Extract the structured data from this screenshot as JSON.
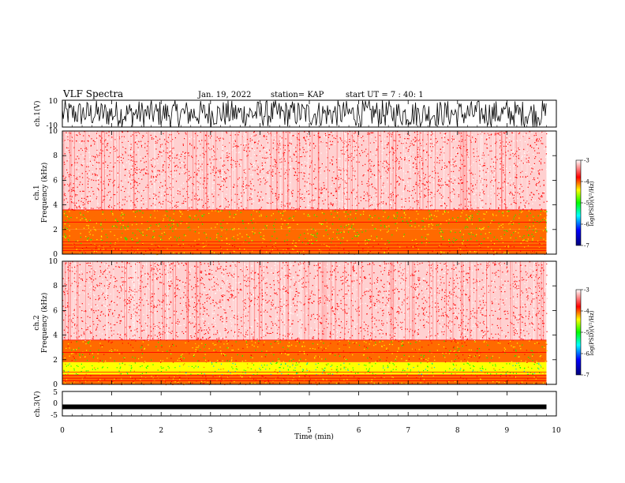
{
  "header": {
    "title": "VLF Spectra",
    "date": "Jan. 19, 2022",
    "station": "station= KAP",
    "start_ut": "start UT =  7 : 40: 1"
  },
  "chart_data": [
    {
      "type": "line",
      "panel": "ch1-waveform",
      "ylabel": "ch.1(V)",
      "ylim": [
        -10,
        10
      ],
      "yticks": [
        "10",
        "-10"
      ],
      "xlim": [
        0,
        10
      ],
      "description_values": "dense black waveform spanning roughly -10 to 10 V over 0-9.8 min"
    },
    {
      "type": "heatmap",
      "panel": "ch1-spectrogram",
      "ylabel": "ch.1\nFrequency (kHz)",
      "ylabel_line1": "ch.1",
      "ylabel_line2": "Frequency (kHz)",
      "ylim": [
        0,
        10
      ],
      "yticks": [
        "10",
        "8",
        "6",
        "4",
        "2",
        "0"
      ],
      "xlim": [
        0,
        9.8
      ],
      "bands": [
        {
          "from_khz": 0,
          "to_khz": 0.9,
          "level": -4.0
        },
        {
          "from_khz": 0.9,
          "to_khz": 2.0,
          "level": -4.4
        },
        {
          "from_khz": 2.0,
          "to_khz": 3.6,
          "level": -4.4
        },
        {
          "from_khz": 3.6,
          "to_khz": 10,
          "level": -3.4
        }
      ],
      "colorbar": {
        "label": "log(PSD)(V²/Hz)",
        "min": -7,
        "max": -3,
        "ticks": [
          "-3",
          "-4",
          "-5",
          "-6",
          "-7"
        ]
      }
    },
    {
      "type": "heatmap",
      "panel": "ch2-spectrogram",
      "ylabel_line1": "ch.2",
      "ylabel_line2": "Frequency (kHz)",
      "ylim": [
        0,
        10
      ],
      "yticks": [
        "10",
        "8",
        "6",
        "4",
        "2",
        "0"
      ],
      "xlim": [
        0,
        9.8
      ],
      "bands": [
        {
          "from_khz": 0,
          "to_khz": 0.8,
          "level": -4.0
        },
        {
          "from_khz": 0.8,
          "to_khz": 1.8,
          "level": -4.8
        },
        {
          "from_khz": 1.8,
          "to_khz": 3.6,
          "level": -4.2
        },
        {
          "from_khz": 3.6,
          "to_khz": 10,
          "level": -3.5
        }
      ],
      "colorbar": {
        "label": "log(PSD)(V²/Hz)",
        "min": -7,
        "max": -3,
        "ticks": [
          "-3",
          "-4",
          "-5",
          "-6",
          "-7"
        ]
      }
    },
    {
      "type": "line",
      "panel": "ch3-waveform",
      "ylabel": "ch.3(V)",
      "ylim": [
        -5,
        5
      ],
      "yticks": [
        "5",
        "0",
        "-5"
      ],
      "xlim": [
        0,
        10
      ],
      "level_v": -1.3
    }
  ],
  "xaxis": {
    "label": "Time (min)",
    "ticks": [
      "0",
      "1",
      "2",
      "3",
      "4",
      "5",
      "6",
      "7",
      "8",
      "9",
      "10"
    ]
  },
  "colors": {
    "red": "#ff0000",
    "yellow": "#ffff00",
    "green": "#00ff00",
    "blue": "#0000ff",
    "navy": "#000080"
  }
}
